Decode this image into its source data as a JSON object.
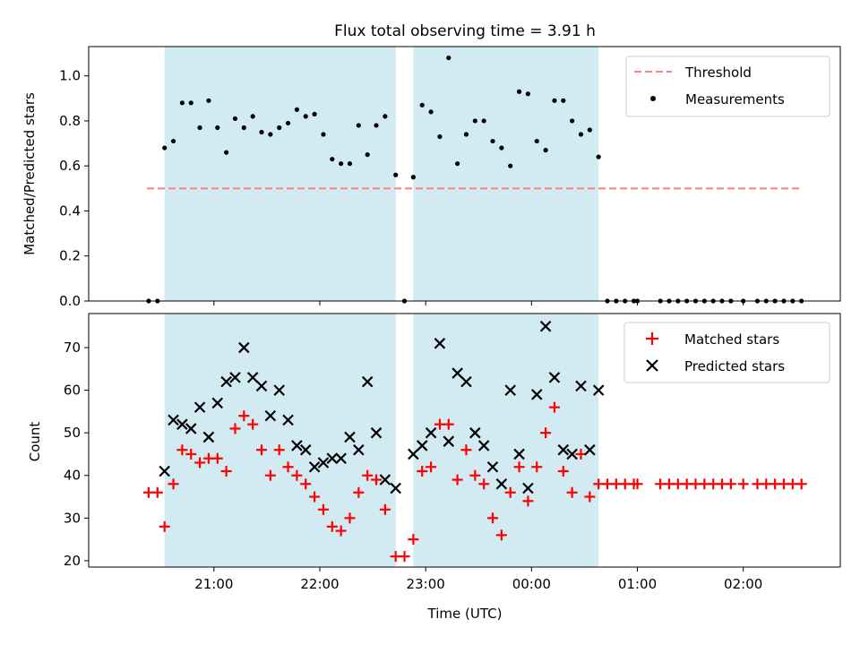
{
  "chart_data": [
    {
      "type": "scatter",
      "title": "Flux total observing time = 3.91 h",
      "ylabel": "Matched/Predicted stars",
      "xlabel": "",
      "ylim": [
        0,
        1.13
      ],
      "yticks": [
        "0.0",
        "0.2",
        "0.4",
        "0.6",
        "0.8",
        "1.0"
      ],
      "shaded_intervals": [
        [
          "20:32",
          "22:43"
        ],
        [
          "22:53",
          "00:38"
        ]
      ],
      "grid": false,
      "legend_position": "top-right",
      "series": [
        {
          "name": "Threshold",
          "style": "dashed-line",
          "color": "#ff7f7f",
          "x": [
            "20:22",
            "02:32"
          ],
          "y": [
            0.5,
            0.5
          ]
        },
        {
          "name": "Measurements",
          "style": "dot",
          "color": "#000000",
          "x": [
            "20:23",
            "20:28",
            "20:32",
            "20:37",
            "20:42",
            "20:47",
            "20:52",
            "20:57",
            "21:02",
            "21:07",
            "21:12",
            "21:17",
            "21:22",
            "21:27",
            "21:32",
            "21:37",
            "21:42",
            "21:47",
            "21:52",
            "21:57",
            "22:02",
            "22:07",
            "22:12",
            "22:17",
            "22:22",
            "22:27",
            "22:32",
            "22:37",
            "22:43",
            "22:48",
            "22:53",
            "22:58",
            "23:03",
            "23:08",
            "23:13",
            "23:18",
            "23:23",
            "23:28",
            "23:33",
            "23:38",
            "23:43",
            "23:48",
            "23:53",
            "23:58",
            "00:03",
            "00:08",
            "00:13",
            "00:18",
            "00:23",
            "00:28",
            "00:33",
            "00:38",
            "00:43",
            "00:48",
            "00:53",
            "00:58",
            "01:00",
            "01:13",
            "01:18",
            "01:23",
            "01:28",
            "01:33",
            "01:38",
            "01:43",
            "01:48",
            "01:53",
            "02:00",
            "02:08",
            "02:13",
            "02:18",
            "02:23",
            "02:28",
            "02:33"
          ],
          "y": [
            0,
            0,
            0.68,
            0.71,
            0.88,
            0.88,
            0.77,
            0.89,
            0.77,
            0.66,
            0.81,
            0.77,
            0.82,
            0.75,
            0.74,
            0.77,
            0.79,
            0.85,
            0.82,
            0.83,
            0.74,
            0.63,
            0.61,
            0.61,
            0.78,
            0.65,
            0.78,
            0.82,
            0.56,
            0,
            0.55,
            0.87,
            0.84,
            0.73,
            1.08,
            0.61,
            0.74,
            0.8,
            0.8,
            0.71,
            0.68,
            0.6,
            0.93,
            0.92,
            0.71,
            0.67,
            0.89,
            0.89,
            0.8,
            0.74,
            0.76,
            0.64,
            0,
            0,
            0,
            0,
            0,
            0,
            0,
            0,
            0,
            0,
            0,
            0,
            0,
            0,
            0,
            0,
            0,
            0,
            0,
            0,
            0
          ]
        }
      ]
    },
    {
      "type": "scatter",
      "title": "",
      "xlabel": "Time (UTC)",
      "ylabel": "Count",
      "ylim": [
        18.5,
        78
      ],
      "yticks": [
        "20",
        "30",
        "40",
        "50",
        "60",
        "70"
      ],
      "xticks": [
        "21:00",
        "22:00",
        "23:00",
        "00:00",
        "01:00",
        "02:00"
      ],
      "grid": false,
      "legend_position": "top-right",
      "series": [
        {
          "name": "Matched stars",
          "marker": "plus",
          "color": "#ff0000",
          "x": [
            "20:23",
            "20:28",
            "20:32",
            "20:37",
            "20:42",
            "20:47",
            "20:52",
            "20:57",
            "21:02",
            "21:07",
            "21:12",
            "21:17",
            "21:22",
            "21:27",
            "21:32",
            "21:37",
            "21:42",
            "21:47",
            "21:52",
            "21:57",
            "22:02",
            "22:07",
            "22:12",
            "22:17",
            "22:22",
            "22:27",
            "22:32",
            "22:37",
            "22:43",
            "22:48",
            "22:53",
            "22:58",
            "23:03",
            "23:08",
            "23:13",
            "23:18",
            "23:23",
            "23:28",
            "23:33",
            "23:38",
            "23:43",
            "23:48",
            "23:53",
            "23:58",
            "00:03",
            "00:08",
            "00:13",
            "00:18",
            "00:23",
            "00:28",
            "00:33",
            "00:38",
            "00:43",
            "00:48",
            "00:53",
            "00:58",
            "01:00",
            "01:13",
            "01:18",
            "01:23",
            "01:28",
            "01:33",
            "01:38",
            "01:43",
            "01:48",
            "01:53",
            "02:00",
            "02:08",
            "02:13",
            "02:18",
            "02:23",
            "02:28",
            "02:33"
          ],
          "y": [
            36,
            36,
            28,
            38,
            46,
            45,
            43,
            44,
            44,
            41,
            51,
            54,
            52,
            46,
            40,
            46,
            42,
            40,
            38,
            35,
            32,
            28,
            27,
            30,
            36,
            40,
            39,
            32,
            21,
            21,
            25,
            41,
            42,
            52,
            52,
            39,
            46,
            40,
            38,
            30,
            26,
            36,
            42,
            34,
            42,
            50,
            56,
            41,
            36,
            45,
            35,
            38,
            38,
            38,
            38,
            38,
            38,
            38,
            38,
            38,
            38,
            38,
            38,
            38,
            38,
            38,
            38,
            38,
            38,
            38,
            38,
            38,
            38
          ]
        },
        {
          "name": "Predicted stars",
          "marker": "x",
          "color": "#000000",
          "x": [
            "20:32",
            "20:37",
            "20:42",
            "20:47",
            "20:52",
            "20:57",
            "21:02",
            "21:07",
            "21:12",
            "21:17",
            "21:22",
            "21:27",
            "21:32",
            "21:37",
            "21:42",
            "21:47",
            "21:52",
            "21:57",
            "22:02",
            "22:07",
            "22:12",
            "22:17",
            "22:22",
            "22:27",
            "22:32",
            "22:37",
            "22:43",
            "22:53",
            "22:58",
            "23:03",
            "23:08",
            "23:13",
            "23:18",
            "23:23",
            "23:28",
            "23:33",
            "23:38",
            "23:43",
            "23:48",
            "23:53",
            "23:58",
            "00:03",
            "00:08",
            "00:13",
            "00:18",
            "00:23",
            "00:28",
            "00:33",
            "00:38"
          ],
          "y": [
            41,
            53,
            52,
            51,
            56,
            49,
            57,
            62,
            63,
            70,
            63,
            61,
            54,
            60,
            53,
            47,
            46,
            42,
            43,
            44,
            44,
            49,
            46,
            62,
            50,
            39,
            37,
            45,
            47,
            50,
            71,
            48,
            64,
            62,
            50,
            47,
            42,
            38,
            60,
            45,
            37,
            59,
            75,
            63,
            46,
            45,
            61,
            46,
            60
          ]
        }
      ]
    }
  ]
}
